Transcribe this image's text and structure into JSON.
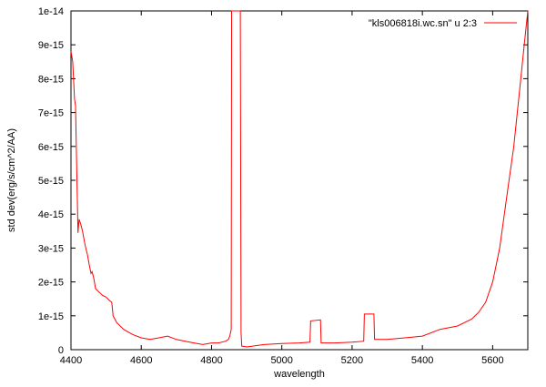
{
  "chart_data": {
    "type": "line",
    "title": "",
    "xlabel": "wavelength",
    "ylabel": "std dev(erg/s/cm^2/AA)",
    "xlim": [
      4400,
      5700
    ],
    "ylim": [
      0,
      1e-14
    ],
    "grid": false,
    "legend_position": "top-right",
    "x_ticks": [
      4400,
      4600,
      4800,
      5000,
      5200,
      5400,
      5600
    ],
    "x_tick_labels": [
      "4400",
      "4600",
      "4800",
      "5000",
      "5200",
      "5400",
      "5600"
    ],
    "y_ticks": [
      0,
      1e-15,
      2e-15,
      3e-15,
      4e-15,
      5e-15,
      6e-15,
      7e-15,
      8e-15,
      9e-15,
      1e-14
    ],
    "y_tick_labels": [
      "0",
      "1e-15",
      "2e-15",
      "3e-15",
      "4e-15",
      "5e-15",
      "6e-15",
      "7e-15",
      "8e-15",
      "9e-15",
      "1e-14"
    ],
    "series": [
      {
        "name": "\"kls006818i.wc.sn\" u 2:3",
        "color": "#ff0000",
        "x": [
          4400,
          4405,
          4410,
          4413,
          4416,
          4420,
          4423,
          4428,
          4433,
          4440,
          4447,
          4452,
          4457,
          4460,
          4465,
          4470,
          4480,
          4490,
          4500,
          4510,
          4516,
          4520,
          4530,
          4550,
          4575,
          4600,
          4625,
          4650,
          4675,
          4700,
          4725,
          4750,
          4775,
          4800,
          4820,
          4840,
          4848,
          4852,
          4856,
          4857,
          4875,
          4880,
          4882,
          4884,
          4886,
          4890,
          4900,
          4950,
          5000,
          5050,
          5080,
          5082,
          5110,
          5112,
          5150,
          5200,
          5233,
          5235,
          5262,
          5264,
          5300,
          5350,
          5400,
          5450,
          5500,
          5520,
          5540,
          5560,
          5580,
          5600,
          5620,
          5640,
          5660,
          5680,
          5690,
          5700
        ],
        "y": [
          8.8e-15,
          8.5e-15,
          7.4e-15,
          7.2e-15,
          5.5e-15,
          3.45e-15,
          3.85e-15,
          3.7e-15,
          3.5e-15,
          3.1e-15,
          2.8e-15,
          2.5e-15,
          2.25e-15,
          2.3e-15,
          2.1e-15,
          1.8e-15,
          1.7e-15,
          1.6e-15,
          1.55e-15,
          1.45e-15,
          1.4e-15,
          1e-15,
          8e-16,
          6e-16,
          4.5e-16,
          3.5e-16,
          3e-16,
          3.5e-16,
          4e-16,
          3e-16,
          2.5e-16,
          2e-16,
          1.5e-16,
          2e-16,
          2e-16,
          2.5e-16,
          3e-16,
          4e-16,
          6e-16,
          1e-14,
          1e-14,
          1e-14,
          1e-14,
          5e-16,
          1e-16,
          1e-16,
          8e-17,
          1.5e-16,
          1.8e-16,
          2e-16,
          2.2e-16,
          8.5e-16,
          8.8e-16,
          2e-16,
          2e-16,
          2.2e-16,
          2.5e-16,
          1.05e-15,
          1.05e-15,
          3e-16,
          3e-16,
          3.5e-16,
          4e-16,
          6e-16,
          7e-16,
          8e-16,
          9e-16,
          1.1e-15,
          1.4e-15,
          2e-15,
          3e-15,
          4.5e-15,
          6e-15,
          8e-15,
          9e-15,
          1e-14
        ]
      }
    ]
  }
}
